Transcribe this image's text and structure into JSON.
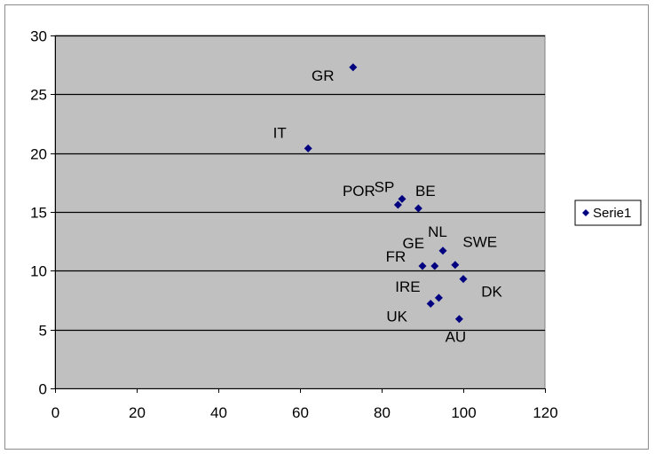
{
  "chart_data": {
    "type": "scatter",
    "title": "",
    "xlabel": "",
    "ylabel": "",
    "xlim": [
      0,
      120
    ],
    "ylim": [
      0,
      30
    ],
    "x_ticks": [
      0,
      20,
      40,
      60,
      80,
      100,
      120
    ],
    "y_ticks": [
      0,
      5,
      10,
      15,
      20,
      25,
      30
    ],
    "grid": "horizontal",
    "plot_background": "#c0c0c0",
    "gridline_color": "#000000",
    "legend": {
      "position": "right",
      "entries": [
        "Serie1"
      ]
    },
    "series": [
      {
        "name": "Serie1",
        "color": "#000080",
        "marker": "diamond",
        "points": [
          {
            "label": "GR",
            "x": 73,
            "y": 27.3
          },
          {
            "label": "IT",
            "x": 62,
            "y": 20.4
          },
          {
            "label": "SP",
            "x": 85,
            "y": 16.1
          },
          {
            "label": "POR",
            "x": 84,
            "y": 15.6
          },
          {
            "label": "BE",
            "x": 89,
            "y": 15.3
          },
          {
            "label": "NL",
            "x": 95,
            "y": 11.7
          },
          {
            "label": "GE",
            "x": 93,
            "y": 10.4
          },
          {
            "label": "FR",
            "x": 90,
            "y": 10.4
          },
          {
            "label": "SWE",
            "x": 98,
            "y": 10.5
          },
          {
            "label": "DK",
            "x": 100,
            "y": 9.3
          },
          {
            "label": "IRE",
            "x": 94,
            "y": 7.7
          },
          {
            "label": "UK",
            "x": 92,
            "y": 7.2
          },
          {
            "label": "AU",
            "x": 99,
            "y": 5.9
          }
        ]
      }
    ]
  }
}
